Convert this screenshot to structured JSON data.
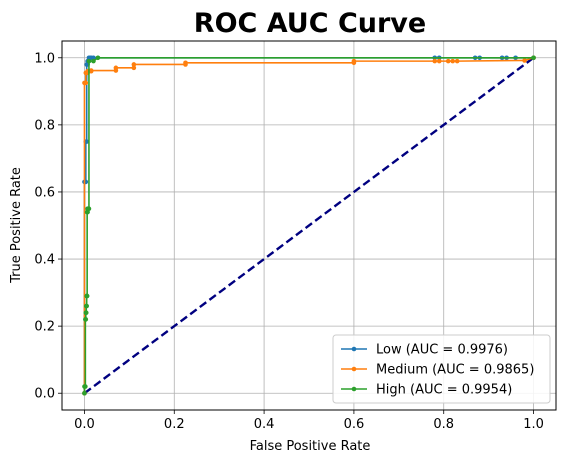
{
  "chart_data": {
    "type": "line",
    "title": "ROC AUC Curve",
    "xlabel": "False Positive Rate",
    "ylabel": "True Positive Rate",
    "xlim": [
      -0.05,
      1.05
    ],
    "ylim": [
      -0.05,
      1.05
    ],
    "xticks": [
      0.0,
      0.2,
      0.4,
      0.6,
      0.8,
      1.0
    ],
    "yticks": [
      0.0,
      0.2,
      0.4,
      0.6,
      0.8,
      1.0
    ],
    "xtick_labels": [
      "0.0",
      "0.2",
      "0.4",
      "0.6",
      "0.8",
      "1.0"
    ],
    "ytick_labels": [
      "0.0",
      "0.2",
      "0.4",
      "0.6",
      "0.8",
      "1.0"
    ],
    "grid": true,
    "legend_position": "lower-right",
    "series": [
      {
        "name": "Low (AUC = 0.9976)",
        "color": "#1f77b4",
        "x": [
          0.0,
          0.0,
          0.003,
          0.003,
          0.005,
          0.005,
          0.007,
          0.007,
          0.01,
          0.01,
          0.013,
          0.015,
          0.02,
          0.78,
          0.79,
          0.87,
          0.88,
          0.93,
          0.94,
          0.96,
          1.0
        ],
        "y": [
          0.0,
          0.63,
          0.63,
          0.75,
          0.75,
          0.98,
          0.98,
          0.99,
          0.99,
          1.0,
          1.0,
          1.0,
          1.0,
          1.0,
          1.0,
          1.0,
          1.0,
          1.0,
          1.0,
          1.0,
          1.0
        ]
      },
      {
        "name": "Medium (AUC = 0.9865)",
        "color": "#ff7f0e",
        "x": [
          0.0,
          0.0,
          0.003,
          0.003,
          0.007,
          0.007,
          0.015,
          0.015,
          0.07,
          0.07,
          0.11,
          0.11,
          0.225,
          0.225,
          0.6,
          0.6,
          0.78,
          0.79,
          0.81,
          0.82,
          0.83,
          0.98,
          1.0
        ],
        "y": [
          0.0,
          0.925,
          0.925,
          0.955,
          0.955,
          0.96,
          0.96,
          0.962,
          0.962,
          0.97,
          0.97,
          0.98,
          0.98,
          0.985,
          0.985,
          0.99,
          0.99,
          0.99,
          0.99,
          0.99,
          0.99,
          0.992,
          1.0
        ]
      },
      {
        "name": "High (AUC = 0.9954)",
        "color": "#2ca02c",
        "x": [
          0.0,
          0.0,
          0.002,
          0.002,
          0.003,
          0.003,
          0.004,
          0.004,
          0.005,
          0.005,
          0.006,
          0.006,
          0.007,
          0.007,
          0.01,
          0.01,
          0.02,
          0.03,
          1.0
        ],
        "y": [
          0.0,
          0.02,
          0.02,
          0.22,
          0.22,
          0.24,
          0.24,
          0.26,
          0.26,
          0.29,
          0.29,
          0.54,
          0.54,
          0.55,
          0.55,
          0.99,
          0.99,
          1.0,
          1.0
        ]
      }
    ],
    "reference_line": {
      "x": [
        0.0,
        1.0
      ],
      "y": [
        0.0,
        1.0
      ],
      "color": "#000080",
      "style": "dashed"
    }
  }
}
